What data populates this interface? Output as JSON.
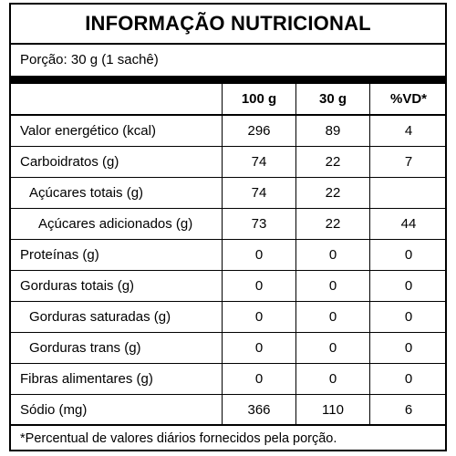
{
  "title": "INFORMAÇÃO NUTRICIONAL",
  "portion": "Porção: 30 g (1 sachê)",
  "columns": {
    "per100": "100 g",
    "per30": "30 g",
    "vd": "%VD*"
  },
  "rows": [
    {
      "name": "Valor energético (kcal)",
      "per100": "296",
      "per30": "89",
      "vd": "4"
    },
    {
      "name": "Carboidratos (g)",
      "per100": "74",
      "per30": "22",
      "vd": "7"
    },
    {
      "name": "Açúcares totais (g)",
      "per100": "74",
      "per30": "22",
      "vd": ""
    },
    {
      "name": "Açúcares adicionados (g)",
      "per100": "73",
      "per30": "22",
      "vd": "44"
    },
    {
      "name": "Proteínas (g)",
      "per100": "0",
      "per30": "0",
      "vd": "0"
    },
    {
      "name": "Gorduras totais (g)",
      "per100": "0",
      "per30": "0",
      "vd": "0"
    },
    {
      "name": "Gorduras saturadas (g)",
      "per100": "0",
      "per30": "0",
      "vd": "0"
    },
    {
      "name": "Gorduras trans (g)",
      "per100": "0",
      "per30": "0",
      "vd": "0"
    },
    {
      "name": "Fibras alimentares (g)",
      "per100": "0",
      "per30": "0",
      "vd": "0"
    },
    {
      "name": "Sódio (mg)",
      "per100": "366",
      "per30": "110",
      "vd": "6"
    }
  ],
  "footnote": "*Percentual de valores diários fornecidos pela porção."
}
